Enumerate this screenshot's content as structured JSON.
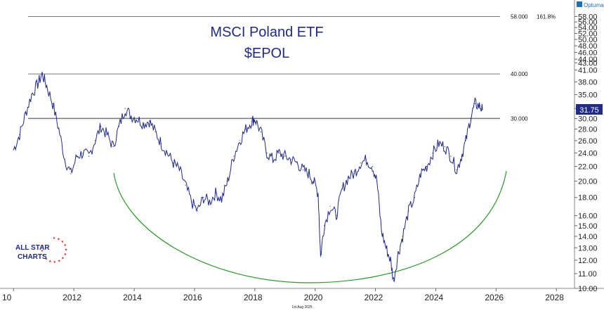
{
  "brand": {
    "logo_text": "Optuma"
  },
  "footer": {
    "date_text": "1st Aug 2025"
  },
  "watermark": {
    "lines": [
      "ALL STAR",
      "CHARTS"
    ]
  },
  "chart_data": {
    "type": "line",
    "title": "MSCI Poland ETF",
    "subtitle": "$EPOL",
    "x_tick_labels": [
      "10",
      "2012",
      "2014",
      "2016",
      "2018",
      "2020",
      "2022",
      "2024",
      "2026",
      "2028"
    ],
    "x_tick_years": [
      2010,
      2012,
      2014,
      2016,
      2018,
      2020,
      2022,
      2024,
      2026,
      2028
    ],
    "y_scale": "log",
    "ylim": [
      10,
      60
    ],
    "y_tick_values": [
      58,
      56,
      54,
      52,
      50,
      48,
      46,
      44,
      43,
      41,
      38,
      35,
      32,
      30,
      28,
      26,
      24,
      22,
      20,
      18,
      16,
      15,
      14,
      13,
      12,
      11,
      10
    ],
    "y_tick_labels": [
      "58.00",
      "56.00",
      "54.00",
      "52.00",
      "50.00",
      "48.00",
      "46.00",
      "44.00",
      "43.00",
      "41.00",
      "38.00",
      "35.00",
      "32.00",
      "30.00",
      "28.00",
      "26.00",
      "24.00",
      "22.00",
      "20.00",
      "18.00",
      "16.00",
      "15.00",
      "14.00",
      "13.00",
      "12.00",
      "11.00",
      "10.00"
    ],
    "last_price": {
      "label": "31.75",
      "value": 31.75,
      "color": "#1f2a8a"
    },
    "levels": [
      {
        "value": 58,
        "label": "58.000",
        "extra": "161.8%"
      },
      {
        "value": 40,
        "label": "40.000",
        "extra": ""
      },
      {
        "value": 30,
        "label": "30.000",
        "extra": ""
      }
    ],
    "series": [
      {
        "color": "#1f2a8a",
        "points": [
          [
            2010.0,
            24.5
          ],
          [
            2010.2,
            27.0
          ],
          [
            2010.4,
            31.0
          ],
          [
            2010.6,
            35.0
          ],
          [
            2010.8,
            37.5
          ],
          [
            2010.95,
            40.0
          ],
          [
            2011.1,
            37.0
          ],
          [
            2011.3,
            33.0
          ],
          [
            2011.5,
            28.0
          ],
          [
            2011.7,
            23.0
          ],
          [
            2011.9,
            21.0
          ],
          [
            2012.1,
            23.5
          ],
          [
            2012.3,
            24.0
          ],
          [
            2012.5,
            23.5
          ],
          [
            2012.7,
            26.0
          ],
          [
            2012.9,
            28.5
          ],
          [
            2013.1,
            27.0
          ],
          [
            2013.3,
            25.0
          ],
          [
            2013.5,
            28.5
          ],
          [
            2013.7,
            32.0
          ],
          [
            2013.9,
            30.5
          ],
          [
            2014.1,
            30.0
          ],
          [
            2014.3,
            29.0
          ],
          [
            2014.5,
            29.5
          ],
          [
            2014.7,
            27.5
          ],
          [
            2014.9,
            25.5
          ],
          [
            2015.1,
            24.0
          ],
          [
            2015.3,
            22.5
          ],
          [
            2015.5,
            21.5
          ],
          [
            2015.7,
            19.5
          ],
          [
            2015.9,
            17.5
          ],
          [
            2016.1,
            16.5
          ],
          [
            2016.3,
            18.0
          ],
          [
            2016.5,
            17.5
          ],
          [
            2016.7,
            18.5
          ],
          [
            2016.9,
            17.8
          ],
          [
            2017.1,
            20.0
          ],
          [
            2017.3,
            23.5
          ],
          [
            2017.5,
            26.0
          ],
          [
            2017.7,
            28.0
          ],
          [
            2017.9,
            29.5
          ],
          [
            2018.0,
            30.0
          ],
          [
            2018.2,
            27.5
          ],
          [
            2018.4,
            24.0
          ],
          [
            2018.6,
            23.0
          ],
          [
            2018.8,
            24.0
          ],
          [
            2019.0,
            23.5
          ],
          [
            2019.2,
            23.0
          ],
          [
            2019.4,
            22.5
          ],
          [
            2019.6,
            21.5
          ],
          [
            2019.8,
            21.0
          ],
          [
            2019.95,
            20.0
          ],
          [
            2020.1,
            18.5
          ],
          [
            2020.18,
            12.3
          ],
          [
            2020.3,
            15.0
          ],
          [
            2020.5,
            17.0
          ],
          [
            2020.7,
            16.0
          ],
          [
            2020.9,
            19.0
          ],
          [
            2021.1,
            20.5
          ],
          [
            2021.3,
            21.0
          ],
          [
            2021.5,
            22.5
          ],
          [
            2021.7,
            23.0
          ],
          [
            2021.9,
            22.0
          ],
          [
            2022.05,
            20.0
          ],
          [
            2022.2,
            14.5
          ],
          [
            2022.35,
            13.0
          ],
          [
            2022.5,
            12.0
          ],
          [
            2022.6,
            10.5
          ],
          [
            2022.75,
            12.5
          ],
          [
            2022.9,
            14.0
          ],
          [
            2023.1,
            16.5
          ],
          [
            2023.3,
            18.0
          ],
          [
            2023.5,
            21.0
          ],
          [
            2023.7,
            22.0
          ],
          [
            2023.9,
            24.0
          ],
          [
            2024.1,
            25.5
          ],
          [
            2024.3,
            25.0
          ],
          [
            2024.5,
            23.5
          ],
          [
            2024.7,
            21.5
          ],
          [
            2024.85,
            23.5
          ],
          [
            2025.0,
            26.0
          ],
          [
            2025.15,
            30.0
          ],
          [
            2025.3,
            33.0
          ],
          [
            2025.45,
            32.5
          ],
          [
            2025.55,
            31.75
          ]
        ]
      }
    ],
    "curve": {
      "color": "#2a9a2a"
    },
    "grid": false
  }
}
